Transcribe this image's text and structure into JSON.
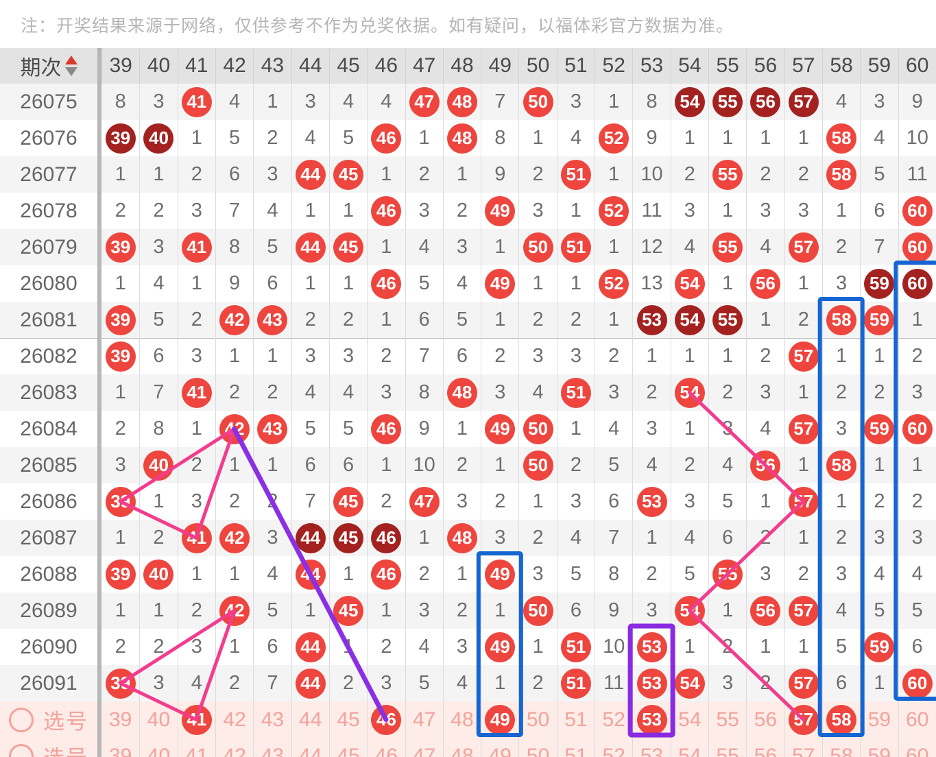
{
  "note": "注：开奖结果来源于网络，仅供参考不作为兑奖依据。如有疑问，以福体彩官方数据为准。",
  "header": {
    "period_label": "期次",
    "sort_icon": "sort-asc-desc-icon",
    "columns": [
      "39",
      "40",
      "41",
      "42",
      "43",
      "44",
      "45",
      "46",
      "47",
      "48",
      "49",
      "50",
      "51",
      "52",
      "53",
      "54",
      "55",
      "56",
      "57",
      "58",
      "59",
      "60"
    ]
  },
  "palette": {
    "ball_red": "#ee453e",
    "ball_dark_red": "#a32220",
    "pink_line": "#f33c8d",
    "purple_line": "#8a2fe3",
    "blue_box": "#1565d2",
    "purple_box": "#8a2ae2",
    "pink_text": "#f4a29c",
    "sel_row_bg": "#fdece7",
    "miss_text": "#6f6f6f",
    "header_bg": "#e3e3e3"
  },
  "rows": [
    {
      "period": "26075",
      "cells": [
        "8",
        "3",
        "41R",
        "4",
        "1",
        "3",
        "4",
        "4",
        "47R",
        "48R",
        "7",
        "50R",
        "3",
        "1",
        "8",
        "54D",
        "55D",
        "56D",
        "57D",
        "4",
        "3",
        "9"
      ]
    },
    {
      "period": "26076",
      "cells": [
        "39D",
        "40D",
        "1",
        "5",
        "2",
        "4",
        "5",
        "46R",
        "1",
        "48R",
        "8",
        "1",
        "4",
        "52R",
        "9",
        "1",
        "1",
        "1",
        "1",
        "58R",
        "4",
        "10"
      ]
    },
    {
      "period": "26077",
      "cells": [
        "1",
        "1",
        "2",
        "6",
        "3",
        "44R",
        "45R",
        "1",
        "2",
        "1",
        "9",
        "2",
        "51R",
        "1",
        "10",
        "2",
        "55R",
        "2",
        "2",
        "58R",
        "5",
        "11"
      ]
    },
    {
      "period": "26078",
      "cells": [
        "2",
        "2",
        "3",
        "7",
        "4",
        "1",
        "1",
        "46R",
        "3",
        "2",
        "49R",
        "3",
        "1",
        "52R",
        "11",
        "3",
        "1",
        "3",
        "3",
        "1",
        "6",
        "60R"
      ]
    },
    {
      "period": "26079",
      "cells": [
        "39R",
        "3",
        "41R",
        "8",
        "5",
        "44R",
        "45R",
        "1",
        "4",
        "3",
        "1",
        "50R",
        "51R",
        "1",
        "12",
        "4",
        "55R",
        "4",
        "57R",
        "2",
        "7",
        "60R"
      ]
    },
    {
      "period": "26080",
      "cells": [
        "1",
        "4",
        "1",
        "9",
        "6",
        "1",
        "1",
        "46R",
        "5",
        "4",
        "49R",
        "1",
        "1",
        "52R",
        "13",
        "54R",
        "1",
        "56R",
        "1",
        "3",
        "59D",
        "60D"
      ]
    },
    {
      "period": "26081",
      "cells": [
        "39R",
        "5",
        "2",
        "42R",
        "43R",
        "2",
        "2",
        "1",
        "6",
        "5",
        "1",
        "2",
        "2",
        "1",
        "53D",
        "54D",
        "55D",
        "1",
        "2",
        "58R",
        "59R",
        "1"
      ]
    },
    {
      "period": "26082",
      "cells": [
        "39R",
        "6",
        "3",
        "1",
        "1",
        "3",
        "3",
        "2",
        "7",
        "6",
        "2",
        "3",
        "3",
        "2",
        "1",
        "1",
        "1",
        "2",
        "57R",
        "1",
        "1",
        "2"
      ]
    },
    {
      "period": "26083",
      "cells": [
        "1",
        "7",
        "41R",
        "2",
        "2",
        "4",
        "4",
        "3",
        "8",
        "48R",
        "3",
        "4",
        "51R",
        "3",
        "2",
        "54R",
        "2",
        "3",
        "1",
        "2",
        "2",
        "3"
      ]
    },
    {
      "period": "26084",
      "cells": [
        "2",
        "8",
        "1",
        "42R",
        "43R",
        "5",
        "5",
        "46R",
        "9",
        "1",
        "49R",
        "50R",
        "1",
        "4",
        "3",
        "1",
        "3",
        "4",
        "57R",
        "3",
        "59R",
        "60R"
      ]
    },
    {
      "period": "26085",
      "cells": [
        "3",
        "40R",
        "2",
        "1",
        "1",
        "6",
        "6",
        "1",
        "10",
        "2",
        "1",
        "50R",
        "2",
        "5",
        "4",
        "2",
        "4",
        "56R",
        "1",
        "58R",
        "1",
        "1"
      ]
    },
    {
      "period": "26086",
      "cells": [
        "39R",
        "1",
        "3",
        "2",
        "2",
        "7",
        "45R",
        "2",
        "47R",
        "3",
        "2",
        "1",
        "3",
        "6",
        "53R",
        "3",
        "5",
        "1",
        "57R",
        "1",
        "2",
        "2"
      ]
    },
    {
      "period": "26087",
      "cells": [
        "1",
        "2",
        "41R",
        "42R",
        "3",
        "44D",
        "45D",
        "46D",
        "1",
        "48R",
        "3",
        "2",
        "4",
        "7",
        "1",
        "4",
        "6",
        "2",
        "1",
        "2",
        "3",
        "3"
      ]
    },
    {
      "period": "26088",
      "cells": [
        "39R",
        "40R",
        "1",
        "1",
        "4",
        "44R",
        "1",
        "46R",
        "2",
        "1",
        "49R",
        "3",
        "5",
        "8",
        "2",
        "5",
        "55R",
        "3",
        "2",
        "3",
        "4",
        "4"
      ]
    },
    {
      "period": "26089",
      "cells": [
        "1",
        "1",
        "2",
        "42R",
        "5",
        "1",
        "45R",
        "1",
        "3",
        "2",
        "1",
        "50R",
        "6",
        "9",
        "3",
        "54R",
        "1",
        "56R",
        "57R",
        "4",
        "5",
        "5"
      ]
    },
    {
      "period": "26090",
      "cells": [
        "2",
        "2",
        "3",
        "1",
        "6",
        "44R",
        "1",
        "2",
        "4",
        "3",
        "49R",
        "1",
        "51R",
        "10",
        "53R",
        "1",
        "2",
        "1",
        "1",
        "5",
        "59R",
        "6"
      ]
    },
    {
      "period": "26091",
      "cells": [
        "39R",
        "3",
        "4",
        "2",
        "7",
        "44R",
        "2",
        "3",
        "5",
        "4",
        "1",
        "2",
        "51R",
        "11",
        "53R",
        "54R",
        "3",
        "2",
        "57R",
        "6",
        "1",
        "60R"
      ]
    }
  ],
  "selection_rows": [
    {
      "label": "选号",
      "cells": [
        "39",
        "40",
        "41R",
        "42",
        "43",
        "44",
        "45",
        "46R",
        "47",
        "48",
        "49R",
        "50",
        "51",
        "52",
        "53R",
        "54",
        "55",
        "56",
        "57R",
        "58R",
        "59",
        "60"
      ]
    },
    {
      "label": "选号",
      "cells": [
        "39",
        "40",
        "41",
        "42",
        "43",
        "44",
        "45",
        "46",
        "47",
        "48",
        "49",
        "50",
        "51",
        "52",
        "53",
        "54",
        "55",
        "56",
        "57",
        "58",
        "59",
        "60"
      ]
    }
  ],
  "annotations": {
    "lines": [
      {
        "name": "pink-triangle-top",
        "color": "#f33c8d",
        "width": 5,
        "points": [
          [
            42,
            9
          ],
          [
            39,
            11
          ],
          [
            41,
            12
          ],
          [
            42,
            9
          ]
        ]
      },
      {
        "name": "pink-triangle-bottom",
        "color": "#f33c8d",
        "width": 5,
        "points": [
          [
            42,
            14
          ],
          [
            39,
            16
          ],
          [
            41,
            17
          ],
          [
            42,
            14
          ]
        ]
      },
      {
        "name": "pink-zigzag-right",
        "color": "#f33c8d",
        "width": 5,
        "points": [
          [
            54,
            8
          ],
          [
            57,
            11
          ],
          [
            54,
            14
          ],
          [
            57,
            17
          ]
        ]
      },
      {
        "name": "purple-line",
        "color": "#8a2fe3",
        "width": 7,
        "points": [
          [
            42,
            9
          ],
          [
            46,
            17
          ]
        ]
      }
    ],
    "boxes": [
      {
        "name": "blue-box-49",
        "color": "#1565d2",
        "width": 6,
        "col": 49,
        "from_row": 13,
        "to_row": 17
      },
      {
        "name": "blue-box-58",
        "color": "#1565d2",
        "width": 6,
        "col": 58,
        "from_row": 6,
        "to_row": 17
      },
      {
        "name": "blue-box-60",
        "color": "#1565d2",
        "width": 6,
        "col": 60,
        "from_row": 5,
        "to_row": 16
      },
      {
        "name": "purple-box-53",
        "color": "#8a2ae2",
        "width": 7,
        "col": 53,
        "from_row": 15,
        "to_row": 17
      }
    ]
  }
}
